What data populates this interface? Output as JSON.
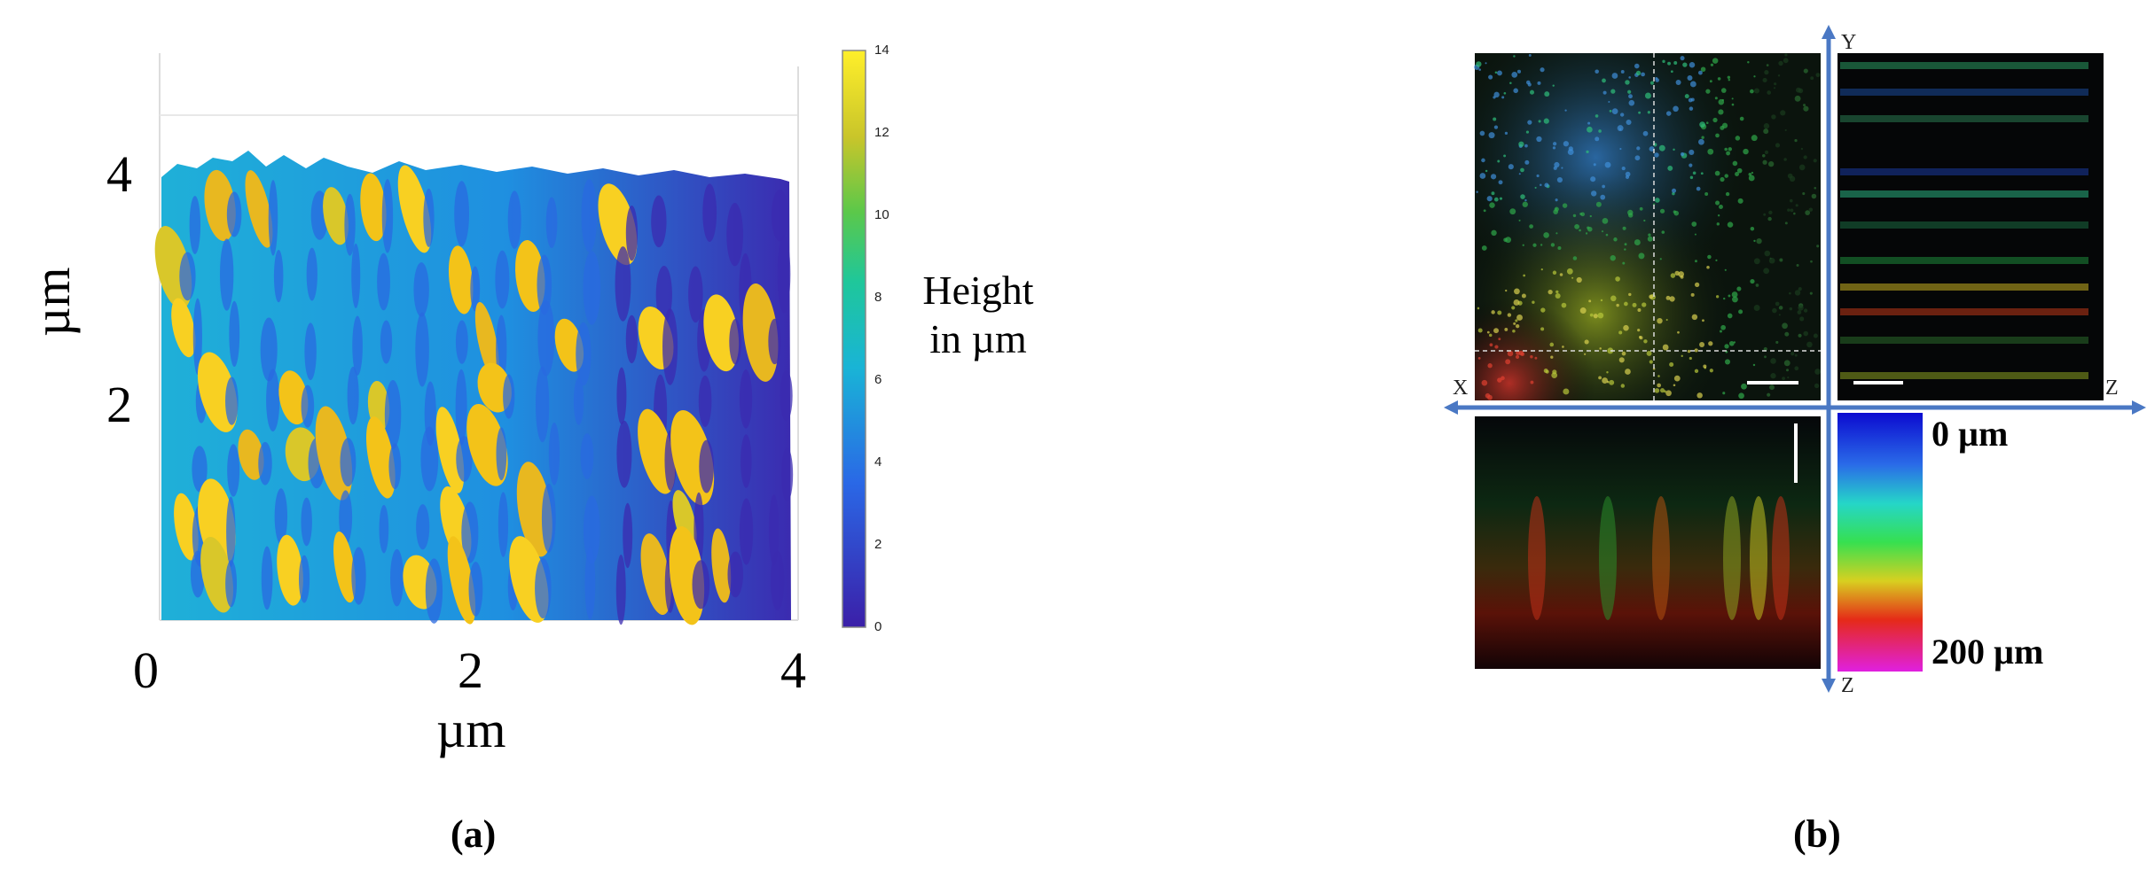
{
  "panel_a": {
    "label": "(a)",
    "x_ticks": [
      "0",
      "2",
      "4"
    ],
    "y_ticks": [
      "4",
      "2"
    ],
    "x_label": "µm",
    "y_label": "µm",
    "colorbar_ticks": [
      "14",
      "12",
      "10",
      "8",
      "6",
      "4",
      "2",
      "0"
    ],
    "colorbar_label_line1": "Height",
    "colorbar_label_line2": "in µm",
    "colors": {
      "low": "#3b1fa8",
      "mid_blue": "#1f7fe0",
      "cyan": "#19c6c0",
      "green": "#4cc84a",
      "high": "#f3c319",
      "top": "#fff02a"
    }
  },
  "panel_b": {
    "label": "(b)",
    "axis_letters": {
      "y_top": "Y",
      "x_left": "X",
      "z_right": "Z",
      "z_bottom": "Z"
    },
    "colorbar_top_label": "0 µm",
    "colorbar_bottom_label": "200 µm",
    "colors": {
      "axis_arrow": "#4a78c4"
    }
  }
}
